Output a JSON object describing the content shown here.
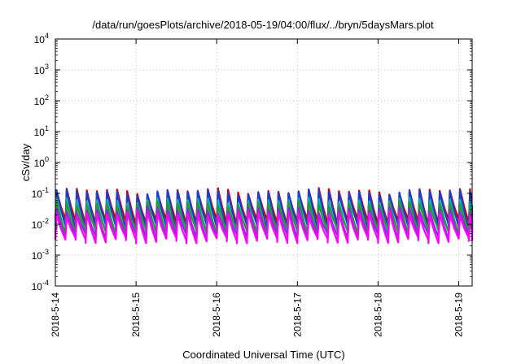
{
  "chart_data": {
    "type": "line",
    "title": "/data/run/goesPlots/archive/2018-05-19/04:00/flux/../bryn/5daysMars.plot",
    "xlabel": "Coordinated Universal Time (UTC)",
    "ylabel": "cSv/day",
    "y_scale": "log",
    "ylim": [
      0.0001,
      10000
    ],
    "y_ticks": [
      {
        "base": "10",
        "exp": "4",
        "value": 10000
      },
      {
        "base": "10",
        "exp": "3",
        "value": 1000
      },
      {
        "base": "10",
        "exp": "2",
        "value": 100
      },
      {
        "base": "10",
        "exp": "1",
        "value": 10
      },
      {
        "base": "10",
        "exp": "0",
        "value": 1
      },
      {
        "base": "10",
        "exp": "-1",
        "value": 0.1
      },
      {
        "base": "10",
        "exp": "-2",
        "value": 0.01
      },
      {
        "base": "10",
        "exp": "-3",
        "value": 0.001
      },
      {
        "base": "10",
        "exp": "-4",
        "value": 0.0001
      }
    ],
    "x_ticks": [
      "2018-5-14",
      "2018-5-15",
      "2018-5-16",
      "2018-5-17",
      "2018-5-18",
      "2018-5-19"
    ],
    "xlim": [
      "2018-05-14 00:00",
      "2018-05-19 04:00"
    ],
    "grid": true,
    "pulse_period_hours": 3,
    "series": [
      {
        "color": "#cc0000",
        "peak": 0.12,
        "trough": 0.012
      },
      {
        "color": "#1a3fd0",
        "peak": 0.11,
        "trough": 0.008
      },
      {
        "color": "#00b0b0",
        "peak": 0.06,
        "trough": 0.005
      },
      {
        "color": "#2a9a2a",
        "peak": 0.045,
        "trough": 0.006
      },
      {
        "color": "#8a2be2",
        "peak": 0.03,
        "trough": 0.004
      },
      {
        "color": "#ff00ff",
        "peak": 0.022,
        "trough": 0.003
      }
    ]
  }
}
